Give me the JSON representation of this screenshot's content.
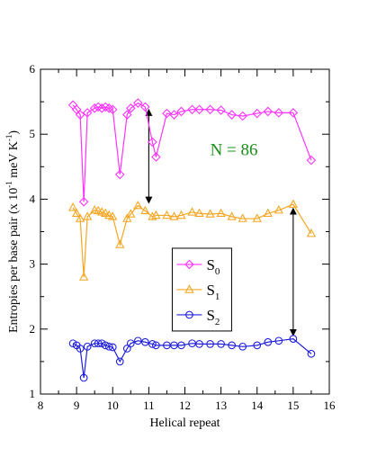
{
  "chart_data": {
    "type": "line",
    "xlabel": "Helical repeat",
    "ylabel_parts": {
      "main": "Entropies per base pair (x 10",
      "exp1": "-1",
      "mid": " meV K",
      "exp2": "-1",
      "end": ")"
    },
    "xlim": [
      8,
      16
    ],
    "ylim": [
      1,
      6
    ],
    "xticks": [
      8,
      9,
      10,
      11,
      12,
      13,
      14,
      15,
      16
    ],
    "yticks": [
      1,
      2,
      3,
      4,
      5,
      6
    ],
    "annotation": {
      "text": "N = 86",
      "color": "#1a8f1a"
    },
    "legend_location": "lower-right",
    "series": [
      {
        "name": "S",
        "subscript": "0",
        "color": "#ff33ff",
        "marker": "diamond",
        "x": [
          8.9,
          9.0,
          9.1,
          9.2,
          9.3,
          9.5,
          9.6,
          9.7,
          9.8,
          9.9,
          10.0,
          10.2,
          10.4,
          10.5,
          10.7,
          10.9,
          11.1,
          11.2,
          11.5,
          11.7,
          11.9,
          12.2,
          12.4,
          12.7,
          13.0,
          13.3,
          13.6,
          14.0,
          14.3,
          14.6,
          15.0,
          15.5
        ],
        "y": [
          5.45,
          5.38,
          5.3,
          3.96,
          5.33,
          5.4,
          5.42,
          5.4,
          5.42,
          5.4,
          5.38,
          4.38,
          5.3,
          5.4,
          5.48,
          5.42,
          4.88,
          4.65,
          5.32,
          5.3,
          5.35,
          5.38,
          5.38,
          5.38,
          5.37,
          5.3,
          5.28,
          5.32,
          5.35,
          5.33,
          5.33,
          4.6
        ]
      },
      {
        "name": "S",
        "subscript": "1",
        "color": "#f5a623",
        "marker": "triangle",
        "x": [
          8.9,
          9.0,
          9.1,
          9.2,
          9.3,
          9.5,
          9.6,
          9.7,
          9.8,
          9.9,
          10.0,
          10.2,
          10.4,
          10.5,
          10.7,
          10.9,
          11.1,
          11.2,
          11.5,
          11.7,
          11.9,
          12.2,
          12.4,
          12.7,
          13.0,
          13.3,
          13.6,
          14.0,
          14.3,
          14.6,
          15.0,
          15.5
        ],
        "y": [
          3.87,
          3.78,
          3.7,
          2.8,
          3.73,
          3.83,
          3.82,
          3.8,
          3.78,
          3.75,
          3.73,
          3.3,
          3.7,
          3.77,
          3.9,
          3.82,
          3.73,
          3.75,
          3.75,
          3.73,
          3.75,
          3.8,
          3.78,
          3.77,
          3.78,
          3.73,
          3.7,
          3.7,
          3.78,
          3.83,
          3.92,
          3.47
        ]
      },
      {
        "name": "S",
        "subscript": "2",
        "color": "#2020dd",
        "marker": "circle",
        "x": [
          8.9,
          9.0,
          9.1,
          9.2,
          9.3,
          9.5,
          9.6,
          9.7,
          9.8,
          9.9,
          10.0,
          10.2,
          10.4,
          10.5,
          10.7,
          10.9,
          11.1,
          11.2,
          11.5,
          11.7,
          11.9,
          12.2,
          12.4,
          12.7,
          13.0,
          13.3,
          13.6,
          14.0,
          14.3,
          14.6,
          15.0,
          15.5
        ],
        "y": [
          1.78,
          1.75,
          1.7,
          1.25,
          1.73,
          1.78,
          1.78,
          1.78,
          1.75,
          1.73,
          1.72,
          1.5,
          1.7,
          1.78,
          1.82,
          1.8,
          1.77,
          1.75,
          1.75,
          1.75,
          1.75,
          1.78,
          1.77,
          1.77,
          1.77,
          1.75,
          1.73,
          1.75,
          1.8,
          1.82,
          1.85,
          1.62
        ]
      }
    ],
    "arrows": [
      {
        "x": 11.0,
        "y_from": 5.42,
        "y_to": 3.9
      },
      {
        "x": 15.0,
        "y_from": 3.9,
        "y_to": 1.86
      }
    ]
  }
}
